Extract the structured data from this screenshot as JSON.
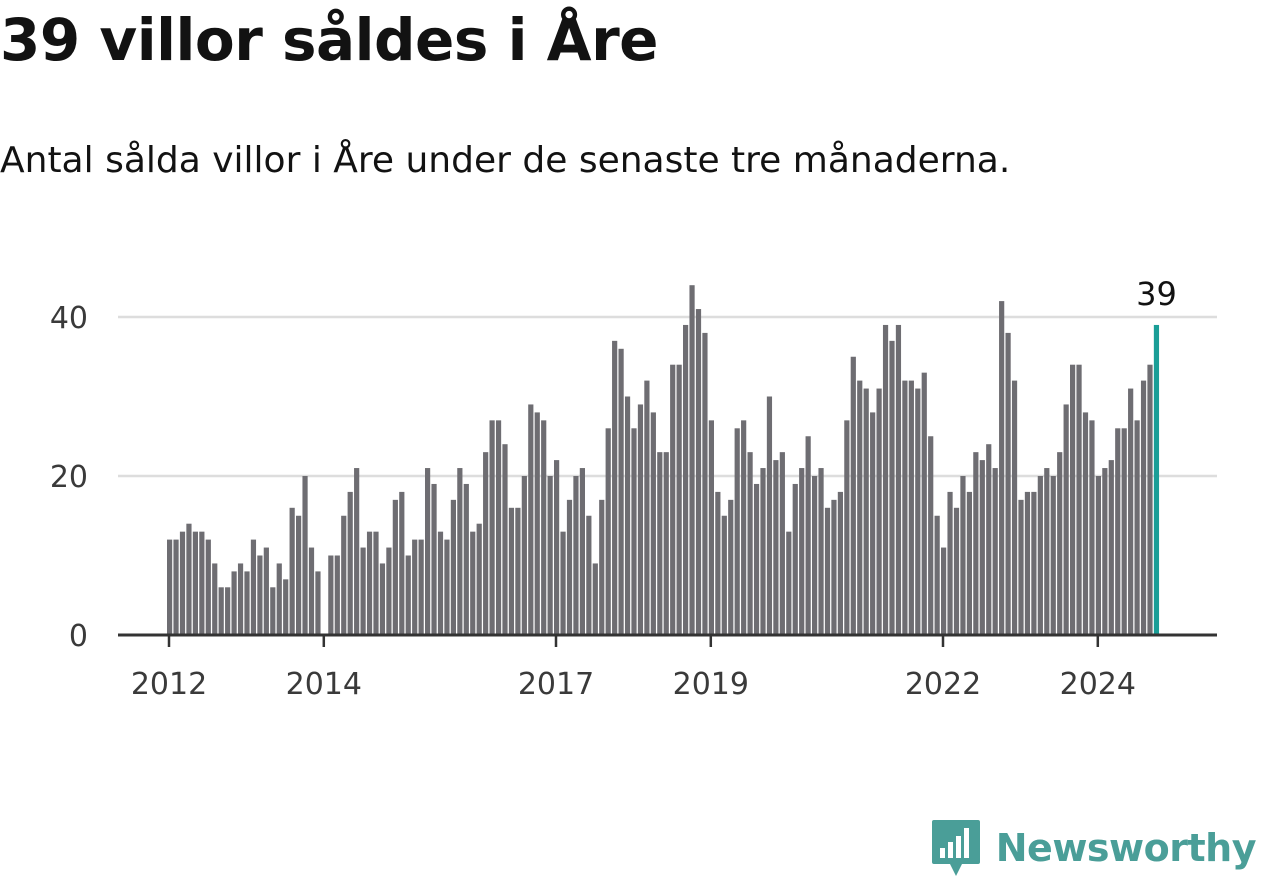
{
  "title": "39 villor såldes i Åre",
  "subtitle": "Antal sålda villor i Åre under de senaste tre månaderna.",
  "brand": {
    "name": "Newsworthy",
    "icon": "bar-chart-badge-icon"
  },
  "colors": {
    "bar": "#6e6d72",
    "highlight": "#1a9e97",
    "grid": "#dddddd",
    "axis": "#333333",
    "brand": "#4a9e98"
  },
  "chart_data": {
    "type": "bar",
    "x_ticks": [
      {
        "label": "2012",
        "index": 0
      },
      {
        "label": "2014",
        "index": 24
      },
      {
        "label": "2017",
        "index": 60
      },
      {
        "label": "2019",
        "index": 84
      },
      {
        "label": "2022",
        "index": 120
      },
      {
        "label": "2024",
        "index": 144
      }
    ],
    "ylim": [
      0,
      45
    ],
    "yticks": [
      0,
      20,
      40
    ],
    "grid": true,
    "values": [
      12,
      12,
      13,
      14,
      13,
      13,
      12,
      9,
      6,
      6,
      8,
      9,
      8,
      12,
      10,
      11,
      6,
      9,
      7,
      16,
      15,
      20,
      11,
      8,
      0,
      10,
      10,
      15,
      18,
      21,
      11,
      13,
      13,
      9,
      11,
      17,
      18,
      10,
      12,
      12,
      21,
      19,
      13,
      12,
      17,
      21,
      19,
      13,
      14,
      23,
      27,
      27,
      24,
      16,
      16,
      20,
      29,
      28,
      27,
      20,
      22,
      13,
      17,
      20,
      21,
      15,
      9,
      17,
      26,
      37,
      36,
      30,
      26,
      29,
      32,
      28,
      23,
      23,
      34,
      34,
      39,
      44,
      41,
      38,
      27,
      18,
      15,
      17,
      26,
      27,
      23,
      19,
      21,
      30,
      22,
      23,
      13,
      19,
      21,
      25,
      20,
      21,
      16,
      17,
      18,
      27,
      35,
      32,
      31,
      28,
      31,
      39,
      37,
      39,
      32,
      32,
      31,
      33,
      25,
      15,
      11,
      18,
      16,
      20,
      18,
      23,
      22,
      24,
      21,
      42,
      38,
      32,
      17,
      18,
      18,
      20,
      21,
      20,
      23,
      29,
      34,
      34,
      28,
      27,
      20,
      21,
      22,
      26,
      26,
      31,
      27,
      32,
      34,
      39
    ],
    "highlight": {
      "index": 153,
      "value": 39,
      "label": "39"
    }
  }
}
